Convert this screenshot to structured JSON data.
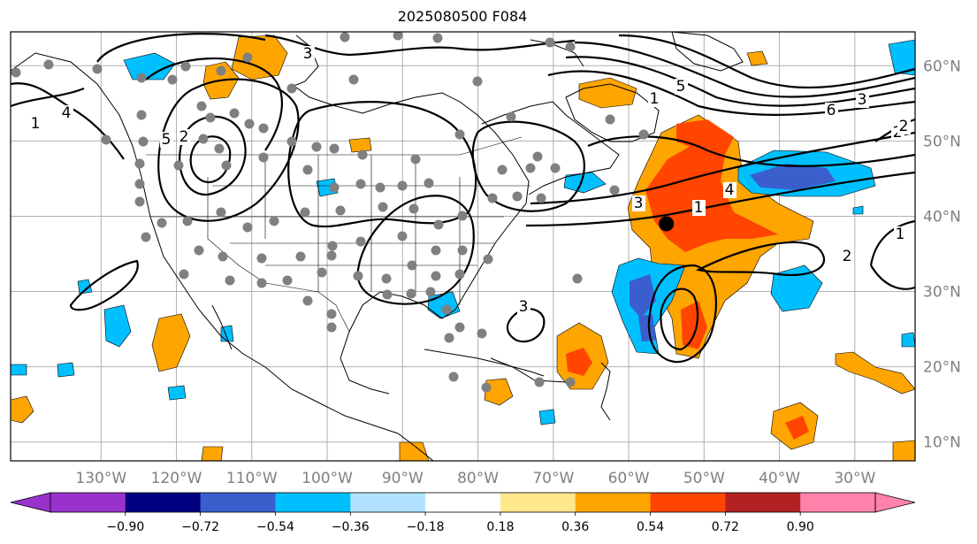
{
  "title": "2025080500 F084",
  "map": {
    "projection": "plate-carree",
    "lon_range": [
      -142,
      -22
    ],
    "lat_range": [
      7.5,
      64.5
    ],
    "grid": true,
    "lon_tick_labels": [
      "130°W",
      "120°W",
      "110°W",
      "100°W",
      "90°W",
      "80°W",
      "70°W",
      "60°W",
      "50°W",
      "40°W",
      "30°W"
    ],
    "lat_tick_labels": [
      "10°N",
      "20°N",
      "30°N",
      "40°N",
      "50°N",
      "60°N"
    ],
    "contour_labels": [
      "3",
      "1",
      "4",
      "5",
      "2",
      "1",
      "2",
      "3",
      "4",
      "5",
      "6",
      "3",
      "2",
      "1",
      "1",
      "2",
      "3"
    ],
    "marker": {
      "lon": -55,
      "lat": 39,
      "color": "#000000"
    },
    "station_color": "#808080"
  },
  "colorbar": {
    "orientation": "horizontal",
    "extend": "both",
    "colors": [
      "#9932cc",
      "#000080",
      "#3a5fcd",
      "#00bfff",
      "#b0e2ff",
      "#ffffff",
      "#ffe78c",
      "#ffa500",
      "#ff4500",
      "#b22222",
      "#ff82ab"
    ],
    "under_color": "#9932cc",
    "over_color": "#ff82ab",
    "tick_labels": [
      "−0.90",
      "−0.72",
      "−0.54",
      "−0.36",
      "−0.18",
      "0.18",
      "0.36",
      "0.54",
      "0.72",
      "0.90"
    ]
  }
}
